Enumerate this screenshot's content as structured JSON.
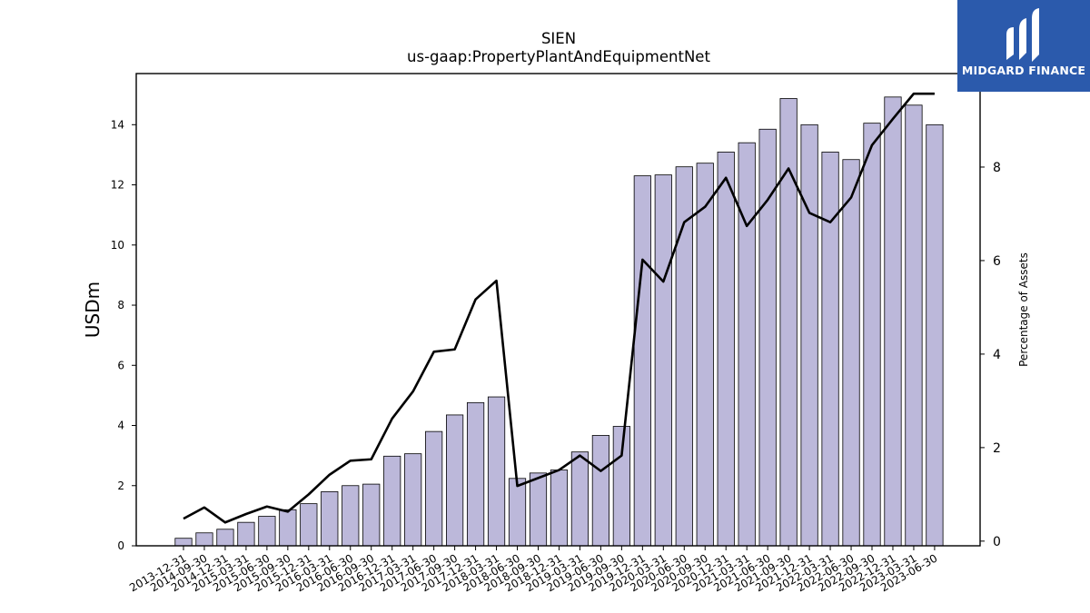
{
  "chart_data": {
    "type": "bar",
    "title": "SIEN",
    "subtitle": "us-gaap:PropertyPlantAndEquipmentNet",
    "ylabel": "USDm",
    "y2label": "Percentage of Assets",
    "ylim": [
      0,
      15.7
    ],
    "y2lim": [
      -0.1,
      10.0
    ],
    "yticks": [
      0,
      2,
      4,
      6,
      8,
      10,
      12,
      14
    ],
    "y2ticks": [
      0,
      2,
      4,
      6,
      8
    ],
    "bar_color": "#bcb8da",
    "line_color": "#000000",
    "categories": [
      "2013-12-31",
      "2014-09-30",
      "2014-12-31",
      "2015-03-31",
      "2015-06-30",
      "2015-09-30",
      "2015-12-31",
      "2016-03-31",
      "2016-06-30",
      "2016-09-30",
      "2016-12-31",
      "2017-03-31",
      "2017-06-30",
      "2017-09-30",
      "2017-12-31",
      "2018-03-31",
      "2018-06-30",
      "2018-09-30",
      "2018-12-31",
      "2019-03-31",
      "2019-06-30",
      "2019-09-30",
      "2019-12-31",
      "2020-03-31",
      "2020-06-30",
      "2020-09-30",
      "2020-12-31",
      "2021-03-31",
      "2021-06-30",
      "2021-09-30",
      "2021-12-31",
      "2022-03-31",
      "2022-06-30",
      "2022-09-30",
      "2022-12-31",
      "2023-03-31",
      "2023-06-30"
    ],
    "series": [
      {
        "kind": "bar",
        "axis": "left",
        "values": [
          0.25,
          0.43,
          0.55,
          0.78,
          0.98,
          1.2,
          1.4,
          1.8,
          2.0,
          2.05,
          2.98,
          3.06,
          3.8,
          4.35,
          4.76,
          4.95,
          2.24,
          2.42,
          2.52,
          3.12,
          3.67,
          3.97,
          12.3,
          12.33,
          12.6,
          12.72,
          13.09,
          13.4,
          13.85,
          14.87,
          14.0,
          13.09,
          12.84,
          14.05,
          14.92,
          14.65,
          14.0
        ]
      },
      {
        "kind": "line",
        "axis": "right",
        "values": [
          0.48,
          0.72,
          0.4,
          0.58,
          0.74,
          0.63,
          1.0,
          1.42,
          1.72,
          1.75,
          2.62,
          3.2,
          4.05,
          4.1,
          5.17,
          5.57,
          1.18,
          1.35,
          1.52,
          1.83,
          1.5,
          1.83,
          6.02,
          5.55,
          6.82,
          7.15,
          7.77,
          6.74,
          7.3,
          7.97,
          7.02,
          6.82,
          7.35,
          8.47,
          9.03,
          9.57,
          9.57
        ]
      }
    ]
  },
  "logo": {
    "text": "MIDGARD FINANCE",
    "bg_color": "#2b5aac"
  }
}
